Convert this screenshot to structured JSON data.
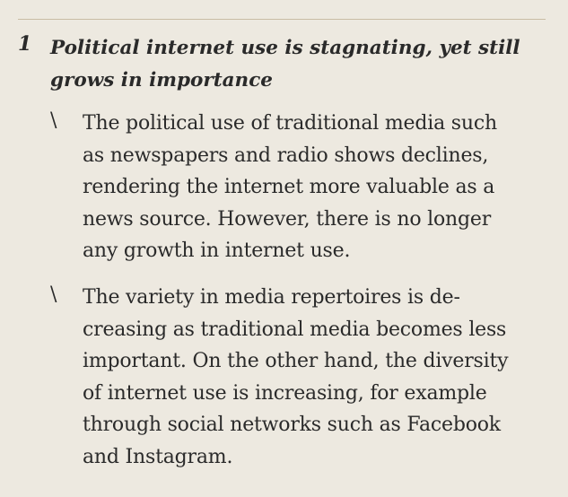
{
  "section": {
    "number": "1",
    "heading_lines": [
      "Political internet use is stagnating, yet still",
      "grows in importance"
    ],
    "bullet_glyph": "\\",
    "items": [
      {
        "lines": [
          "The political use of traditional media such",
          "as newspapers and radio shows declines,",
          "rendering the internet more valuable as a",
          "news source. However, there is no longer",
          "any growth in internet use."
        ]
      },
      {
        "lines": [
          "The variety in media repertoires is de-",
          "creasing as traditional media becomes less",
          "important. On the other hand, the diversity",
          "of internet use is increasing, for example",
          "through social networks such as Facebook",
          "and Instagram."
        ]
      }
    ]
  }
}
